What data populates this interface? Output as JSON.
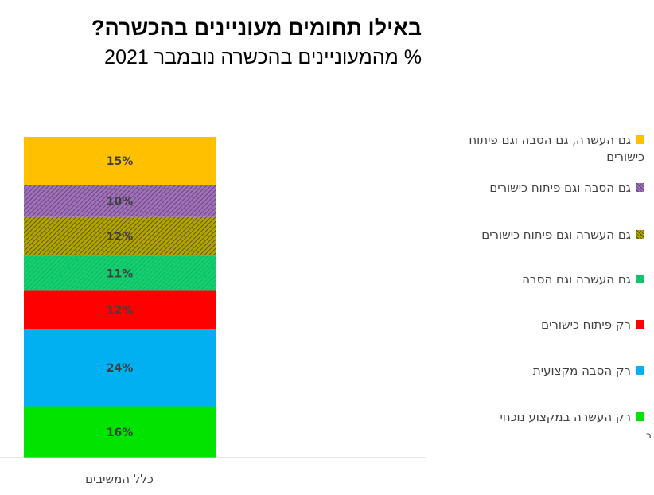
{
  "title": "באילו תחומים מעוניינים בהכשרה?",
  "subtitle": "% מהמעוניינים בהכשרה נובמבר 2021",
  "corner_mark": "ר",
  "chart_data": {
    "type": "bar",
    "stacked": true,
    "categories": [
      "כלל המשיבים"
    ],
    "series": [
      {
        "name": "רק העשרה במקצוע נוכחי",
        "values": [
          16
        ],
        "label": "16%",
        "color": "#00e400",
        "pattern": "solid"
      },
      {
        "name": "רק הסבה מקצועית",
        "values": [
          24
        ],
        "label": "24%",
        "color": "#00b0f0",
        "pattern": "solid"
      },
      {
        "name": "רק פיתוח כישורים",
        "values": [
          12
        ],
        "label": "12%",
        "color": "#ff0000",
        "pattern": "solid"
      },
      {
        "name": "גם העשרה וגם הסבה",
        "values": [
          11
        ],
        "label": "11%",
        "color": "#13cf70",
        "pattern": "hatch-light"
      },
      {
        "name": "גם העשרה וגם פיתוח כישורים",
        "values": [
          12
        ],
        "label": "12%",
        "color": "#8a8a00",
        "pattern": "hatch-dark"
      },
      {
        "name": "גם הסבה וגם פיתוח כישורים",
        "values": [
          10
        ],
        "label": "10%",
        "color": "#8e5aa0",
        "pattern": "hatch-dark"
      },
      {
        "name": "גם העשרה, גם הסבה וגם פיתוח כישורים",
        "values": [
          15
        ],
        "label": "15%",
        "color": "#ffc000",
        "pattern": "solid"
      }
    ],
    "legend_position": "right",
    "grid": false
  }
}
